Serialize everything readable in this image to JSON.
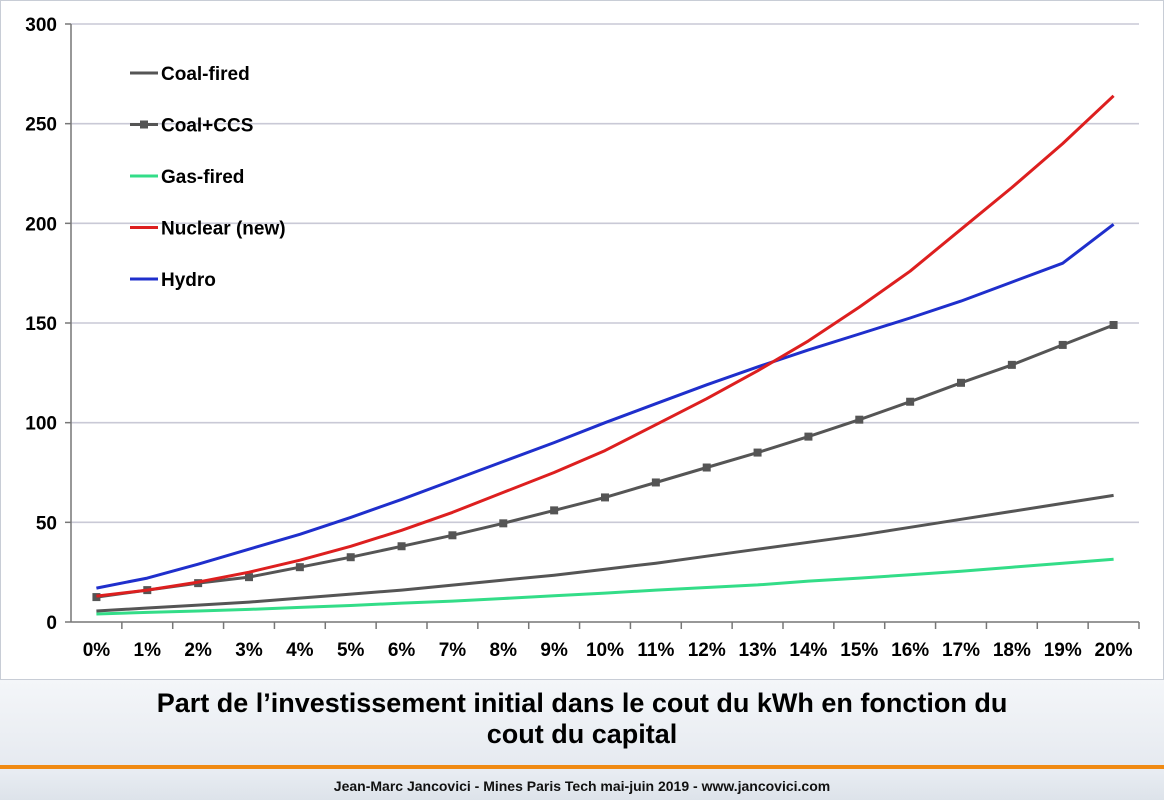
{
  "chart_data": {
    "type": "line",
    "title": "",
    "xlabel": "",
    "ylabel": "",
    "x": [
      "0%",
      "1%",
      "2%",
      "3%",
      "4%",
      "5%",
      "6%",
      "7%",
      "8%",
      "9%",
      "10%",
      "11%",
      "12%",
      "13%",
      "14%",
      "15%",
      "16%",
      "17%",
      "18%",
      "19%",
      "20%"
    ],
    "yticks": [
      0,
      50,
      100,
      150,
      200,
      250,
      300
    ],
    "ylim": [
      0,
      300
    ],
    "grid": "horizontal",
    "legend_position": "top-left",
    "series": [
      {
        "name": "Coal-fired",
        "color": "#555555",
        "marker": "none",
        "values": [
          5.5,
          7,
          8.5,
          10,
          12,
          14,
          16,
          18.5,
          21,
          23.5,
          26.5,
          29.5,
          33,
          36.5,
          40,
          43.5,
          47.5,
          51.5,
          55.5,
          59.5,
          63.5
        ]
      },
      {
        "name": "Coal+CCS",
        "color": "#555555",
        "marker": "square",
        "values": [
          12.5,
          16,
          19.5,
          22.5,
          27.5,
          32.5,
          38,
          43.5,
          49.5,
          56,
          62.5,
          70,
          77.5,
          85,
          93,
          101.5,
          110.5,
          120,
          129,
          139,
          149
        ]
      },
      {
        "name": "Gas-fired",
        "color": "#33dd88",
        "marker": "none",
        "values": [
          4,
          4.8,
          5.5,
          6.3,
          7.3,
          8.3,
          9.5,
          10.5,
          11.8,
          13.2,
          14.5,
          16,
          17.3,
          18.6,
          20.5,
          22,
          23.7,
          25.5,
          27.5,
          29.5,
          31.5
        ]
      },
      {
        "name": "Nuclear (new)",
        "color": "#dd1f1f",
        "marker": "none",
        "values": [
          13,
          16,
          20,
          25,
          31,
          38,
          46,
          55,
          65,
          75,
          86,
          99,
          112,
          126,
          141,
          158,
          176,
          197,
          218,
          240,
          264
        ]
      },
      {
        "name": "Hydro",
        "color": "#1f2fcc",
        "marker": "none",
        "values": [
          17,
          22,
          29,
          36.5,
          44,
          52.5,
          61.5,
          71,
          80.5,
          90,
          100,
          109.5,
          119,
          128,
          136.5,
          144.5,
          152.5,
          161,
          170.5,
          180,
          199.5
        ]
      }
    ]
  },
  "caption": {
    "line1": "Part de l’investissement initial dans le cout du kWh en fonction du",
    "line2": "cout du capital"
  },
  "footer": "Jean-Marc Jancovici - Mines Paris Tech mai-juin 2019 - www.jancovici.com"
}
